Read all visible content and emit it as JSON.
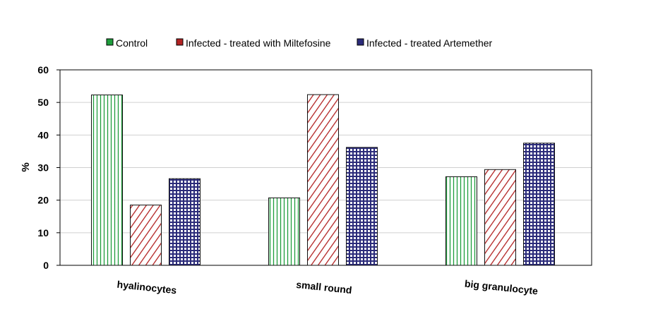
{
  "chart_data": {
    "type": "bar",
    "title": "",
    "xlabel": "",
    "ylabel": "%",
    "ylim": [
      0,
      60
    ],
    "yticks": [
      "0",
      "10",
      "20",
      "30",
      "40",
      "50",
      "60"
    ],
    "categories": [
      "hyalinocytes",
      "small round",
      "big granulocyte"
    ],
    "series": [
      {
        "name": "Control",
        "values": [
          52.3,
          20.7,
          27.2
        ],
        "color": "#1e9e3c",
        "pattern": "vertical-lines"
      },
      {
        "name": "Infected - treated with Miltefosine",
        "values": [
          18.5,
          52.4,
          29.4
        ],
        "color": "#b22222",
        "pattern": "diagonal-lines"
      },
      {
        "name": "Infected - treated Artemether",
        "values": [
          26.6,
          36.2,
          37.5
        ],
        "color": "#2b2b7a",
        "pattern": "grid"
      }
    ],
    "legend_position": "top",
    "grid": true
  }
}
